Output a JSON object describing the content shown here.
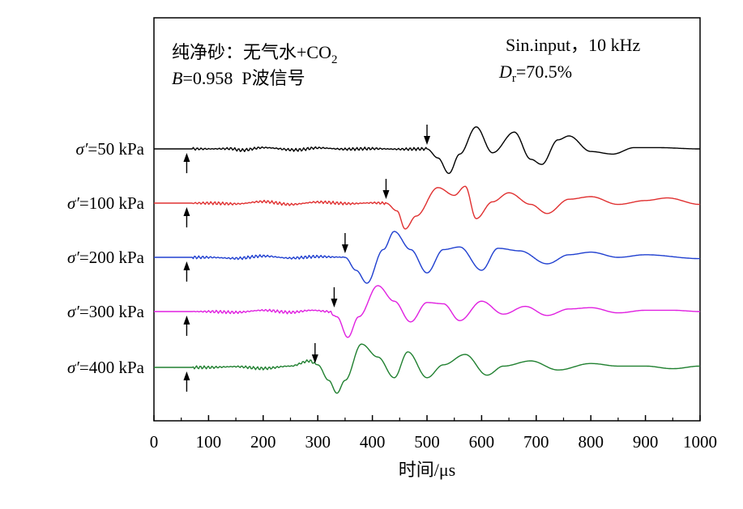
{
  "chart_data": {
    "type": "line",
    "title": "",
    "xlabel": "时间/μs",
    "ylabel": "",
    "xlim": [
      0,
      1000
    ],
    "xticks": [
      "0",
      "100",
      "200",
      "300",
      "400",
      "500",
      "600",
      "700",
      "800",
      "900",
      "1000"
    ],
    "grid": false,
    "annotations": {
      "left_line1": "纯净砂：无气水+CO",
      "left_line1_sub": "2",
      "left_line2_italic": "B",
      "left_line2_rest": "=0.958  P波信号",
      "right_line1": "Sin.input，10 kHz",
      "right_line2_italic": "D",
      "right_line2_sub": "r",
      "right_line2_rest": "=70.5%"
    },
    "source_arrow_time_us": 60,
    "series": [
      {
        "name": "σ′=50 kPa",
        "sigma_symbol": "σ′",
        "pressure_label": "=50 kPa",
        "color": "#000000",
        "arrival_us": 500,
        "t": [
          0,
          60,
          100,
          140,
          160,
          200,
          260,
          300,
          350,
          400,
          450,
          500,
          520,
          540,
          560,
          590,
          620,
          660,
          690,
          710,
          740,
          760,
          800,
          840,
          880,
          920,
          1000
        ],
        "v": [
          0,
          0,
          0,
          0.01,
          -0.05,
          0.05,
          -0.04,
          0.04,
          -0.01,
          0.01,
          -0.01,
          0,
          -0.35,
          -0.95,
          -0.2,
          0.85,
          -0.15,
          0.65,
          -0.4,
          -0.6,
          0.35,
          0.5,
          -0.1,
          -0.2,
          0.05,
          0.05,
          0
        ]
      },
      {
        "name": "σ′=100 kPa",
        "sigma_symbol": "σ′",
        "pressure_label": "=100 kPa",
        "color": "#e03030",
        "arrival_us": 425,
        "t": [
          0,
          60,
          100,
          150,
          200,
          250,
          300,
          360,
          400,
          425,
          445,
          460,
          480,
          520,
          550,
          570,
          590,
          620,
          650,
          690,
          720,
          760,
          800,
          850,
          900,
          940,
          1000
        ],
        "v": [
          0,
          0,
          0,
          -0.03,
          0.06,
          -0.05,
          0.04,
          -0.02,
          0.01,
          0,
          -0.3,
          -1,
          -0.5,
          0.6,
          0.3,
          0.65,
          -0.6,
          0.05,
          0.4,
          -0.05,
          -0.4,
          0.15,
          0.25,
          -0.05,
          0.1,
          0.2,
          -0.05
        ]
      },
      {
        "name": "σ′=200 kPa",
        "sigma_symbol": "σ′",
        "pressure_label": "=200 kPa",
        "color": "#2040d0",
        "arrival_us": 350,
        "t": [
          0,
          60,
          100,
          150,
          200,
          250,
          300,
          335,
          350,
          370,
          390,
          420,
          440,
          470,
          500,
          530,
          560,
          600,
          630,
          670,
          720,
          760,
          800,
          850,
          900,
          1000
        ],
        "v": [
          0,
          0,
          0,
          -0.04,
          0.05,
          -0.03,
          0.03,
          0.01,
          0,
          -0.5,
          -1,
          0.3,
          1,
          0.3,
          -0.6,
          0.3,
          0.4,
          -0.5,
          0.35,
          0.25,
          -0.25,
          0.1,
          0.2,
          0,
          0.1,
          -0.05
        ]
      },
      {
        "name": "σ′=300 kPa",
        "sigma_symbol": "σ′",
        "pressure_label": "=300 kPa",
        "color": "#e020e0",
        "arrival_us": 330,
        "t": [
          0,
          60,
          100,
          150,
          200,
          250,
          290,
          320,
          335,
          355,
          375,
          410,
          440,
          470,
          500,
          530,
          560,
          600,
          640,
          680,
          720,
          760,
          800,
          850,
          900,
          950,
          1000
        ],
        "v": [
          0,
          0,
          0,
          -0.03,
          0.05,
          -0.03,
          0.05,
          0,
          -0.2,
          -1,
          -0.2,
          1,
          0.4,
          -0.4,
          0.35,
          0.3,
          -0.35,
          0.4,
          -0.1,
          0.2,
          -0.15,
          0.1,
          0.15,
          -0.05,
          0.05,
          0.05,
          0
        ]
      },
      {
        "name": "σ′=400 kPa",
        "sigma_symbol": "σ′",
        "pressure_label": "=400 kPa",
        "color": "#208030",
        "arrival_us": 295,
        "t": [
          0,
          60,
          100,
          150,
          200,
          250,
          285,
          300,
          320,
          335,
          350,
          380,
          410,
          440,
          465,
          500,
          530,
          570,
          610,
          640,
          690,
          740,
          800,
          850,
          900,
          950,
          1000
        ],
        "v": [
          0,
          0,
          0,
          0.03,
          -0.04,
          0.05,
          0.25,
          0.1,
          -0.5,
          -1,
          -0.5,
          0.9,
          0.4,
          -0.4,
          0.6,
          -0.4,
          0.1,
          0.5,
          -0.3,
          0.05,
          0.25,
          -0.1,
          0.15,
          0.05,
          0.05,
          -0.05,
          0.05
        ]
      }
    ]
  }
}
